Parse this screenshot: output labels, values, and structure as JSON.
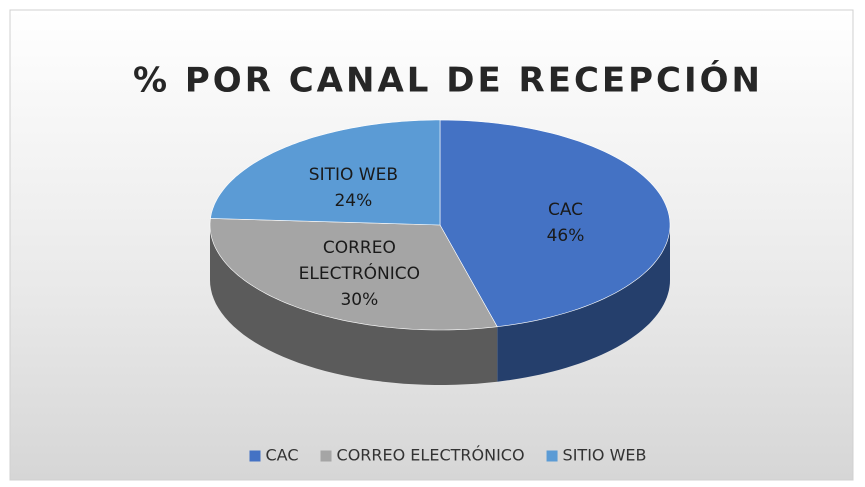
{
  "chart_data": {
    "type": "pie",
    "title": "% POR CANAL DE RECEPCIÓN",
    "categories": [
      "CAC",
      "CORREO ELECTRÓNICO",
      "SITIO WEB"
    ],
    "values": [
      46,
      30,
      24
    ],
    "value_labels": [
      "46%",
      "30%",
      "24%"
    ],
    "colors": [
      "#4472c4",
      "#a5a5a5",
      "#5b9bd5"
    ],
    "legend": "bottom"
  }
}
